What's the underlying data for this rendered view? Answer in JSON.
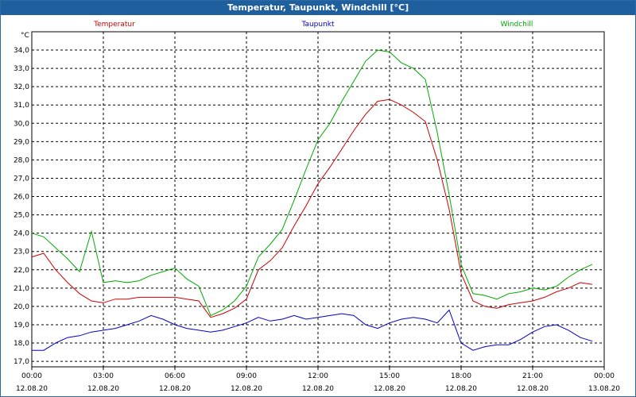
{
  "window": {
    "title": "Temperatur, Taupunkt, Windchill [°C]"
  },
  "chart_data": {
    "type": "line",
    "title": "Temperatur, Taupunkt, Windchill [°C]",
    "ylabel": "°C",
    "xlim": [
      "12.08.20 00:00",
      "13.08.20 00:00"
    ],
    "ylim": [
      16.7,
      35.0
    ],
    "grid": true,
    "legend_position": "top",
    "x": [
      "00:00",
      "00:30",
      "01:00",
      "01:30",
      "02:00",
      "02:30",
      "03:00",
      "03:30",
      "04:00",
      "04:30",
      "05:00",
      "05:30",
      "06:00",
      "06:30",
      "07:00",
      "07:30",
      "08:00",
      "08:30",
      "09:00",
      "09:30",
      "10:00",
      "10:30",
      "11:00",
      "11:30",
      "12:00",
      "12:30",
      "13:00",
      "13:30",
      "14:00",
      "14:30",
      "15:00",
      "15:30",
      "16:00",
      "16:30",
      "17:00",
      "17:30",
      "18:00",
      "18:30",
      "19:00",
      "19:30",
      "20:00",
      "20:30",
      "21:00",
      "21:30",
      "22:00",
      "22:30",
      "23:00",
      "23:30"
    ],
    "series": [
      {
        "name": "Temperatur",
        "color": "#cc0000",
        "values": [
          22.7,
          22.9,
          22.0,
          21.3,
          20.7,
          20.3,
          20.2,
          20.4,
          20.4,
          20.5,
          20.5,
          20.5,
          20.5,
          20.4,
          20.3,
          19.4,
          19.6,
          19.9,
          20.4,
          22.0,
          22.5,
          23.2,
          24.4,
          25.5,
          26.7,
          27.6,
          28.6,
          29.6,
          30.5,
          31.2,
          31.3,
          31.0,
          30.6,
          30.1,
          28.0,
          25.3,
          21.8,
          20.3,
          20.0,
          19.9,
          20.1,
          20.2,
          20.3,
          20.5,
          20.8,
          21.0,
          21.3,
          21.2
        ]
      },
      {
        "name": "Taupunkt",
        "color": "#0000cc",
        "values": [
          17.6,
          17.6,
          18.0,
          18.3,
          18.4,
          18.6,
          18.7,
          18.8,
          19.0,
          19.2,
          19.5,
          19.3,
          19.0,
          18.8,
          18.7,
          18.6,
          18.7,
          18.9,
          19.1,
          19.4,
          19.2,
          19.3,
          19.5,
          19.3,
          19.4,
          19.5,
          19.6,
          19.5,
          19.0,
          18.8,
          19.1,
          19.3,
          19.4,
          19.3,
          19.1,
          19.8,
          18.0,
          17.6,
          17.8,
          17.9,
          17.9,
          18.2,
          18.6,
          18.9,
          19.0,
          18.7,
          18.3,
          18.1
        ]
      },
      {
        "name": "Windchill",
        "color": "#00aa00",
        "values": [
          24.0,
          23.8,
          23.2,
          22.6,
          21.9,
          24.1,
          21.3,
          21.4,
          21.3,
          21.4,
          21.7,
          21.9,
          22.1,
          21.5,
          21.1,
          19.5,
          19.8,
          20.3,
          21.1,
          22.7,
          23.4,
          24.2,
          25.8,
          27.5,
          29.1,
          30.0,
          31.2,
          32.3,
          33.4,
          34.0,
          33.9,
          33.3,
          33.0,
          32.4,
          29.5,
          26.1,
          22.3,
          20.7,
          20.6,
          20.4,
          20.7,
          20.8,
          21.0,
          20.9,
          21.1,
          21.6,
          22.0,
          22.3
        ]
      }
    ],
    "x_ticks": [
      {
        "time": "00:00",
        "date": "12.08.20"
      },
      {
        "time": "03:00",
        "date": "12.08.20"
      },
      {
        "time": "06:00",
        "date": "12.08.20"
      },
      {
        "time": "09:00",
        "date": "12.08.20"
      },
      {
        "time": "12:00",
        "date": "12.08.20"
      },
      {
        "time": "15:00",
        "date": "12.08.20"
      },
      {
        "time": "18:00",
        "date": "12.08.20"
      },
      {
        "time": "21:00",
        "date": "12.08.20"
      },
      {
        "time": "00:00",
        "date": "13.08.20"
      }
    ],
    "y_ticks": [
      "17,0",
      "18,0",
      "19,0",
      "20,0",
      "21,0",
      "22,0",
      "23,0",
      "24,0",
      "25,0",
      "26,0",
      "27,0",
      "28,0",
      "29,0",
      "30,0",
      "31,0",
      "32,0",
      "33,0",
      "34,0"
    ]
  }
}
